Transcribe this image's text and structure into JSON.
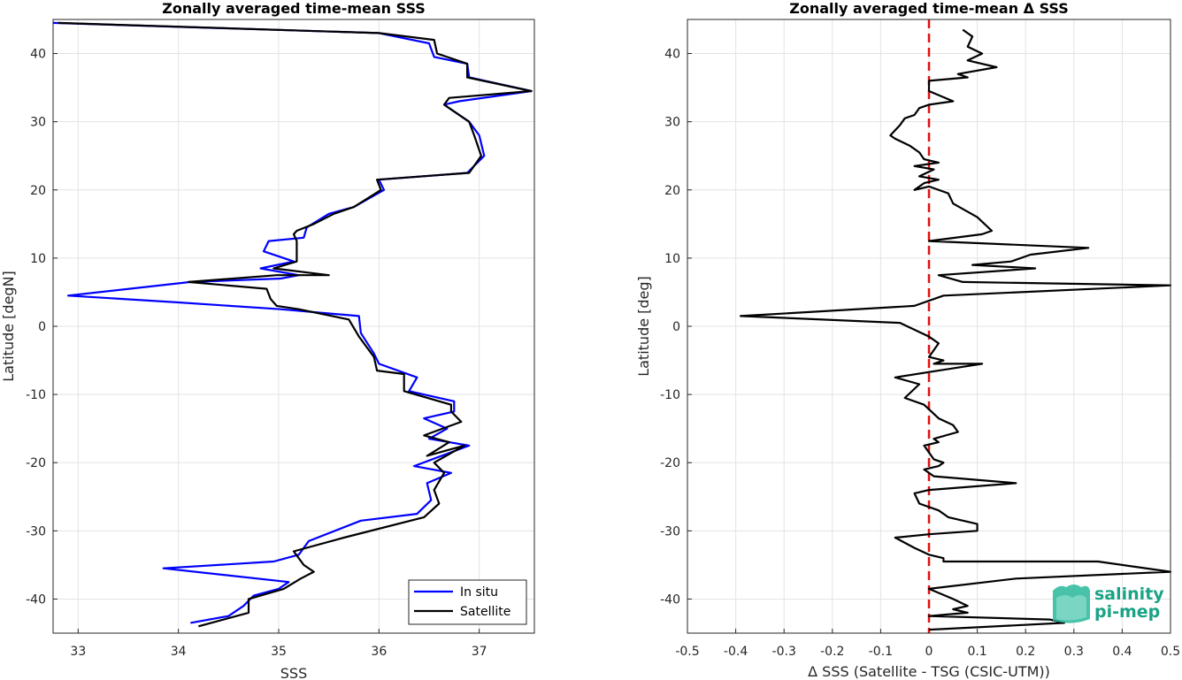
{
  "chart_data": [
    {
      "type": "line",
      "title": "Zonally averaged time-mean SSS",
      "xlabel": "SSS",
      "ylabel": "Latitude [degN]",
      "xlim": [
        32.75,
        37.55
      ],
      "ylim": [
        -45,
        45
      ],
      "xticks": [
        33,
        34,
        35,
        36,
        37
      ],
      "yticks": [
        -40,
        -30,
        -20,
        -10,
        0,
        10,
        20,
        30,
        40
      ],
      "grid": true,
      "legend_position": "bottom-right",
      "series": [
        {
          "name": "In situ",
          "color": "#0000ff",
          "x": [
            32.75,
            36.0,
            36.5,
            36.55,
            36.88,
            36.9,
            37.52,
            36.8,
            36.65,
            36.9,
            37.0,
            37.05,
            36.88,
            36.0,
            36.05,
            35.75,
            35.5,
            35.28,
            35.25,
            34.9,
            34.85,
            35.15,
            34.82,
            35.2,
            35.02,
            34.12,
            32.9,
            34.0,
            35.02,
            35.8,
            35.82,
            35.95,
            36.0,
            36.38,
            36.3,
            36.75,
            36.75,
            36.45,
            36.68,
            36.5,
            36.9,
            36.35,
            36.72,
            36.48,
            36.52,
            36.38,
            35.82,
            35.3,
            35.2,
            34.95,
            33.85,
            35.1,
            35.0,
            34.75,
            34.65,
            34.5,
            34.12
          ],
          "y": [
            44.5,
            43.0,
            41.5,
            39.5,
            38.5,
            36.5,
            34.5,
            33.0,
            32.5,
            30.0,
            28.0,
            25.0,
            22.5,
            21.5,
            20.0,
            17.5,
            16.5,
            14.5,
            13.0,
            12.5,
            11.0,
            9.5,
            8.5,
            7.5,
            7.0,
            6.5,
            4.5,
            3.5,
            2.5,
            1.5,
            -1.0,
            -4.0,
            -5.5,
            -7.5,
            -9.5,
            -11.0,
            -12.5,
            -13.5,
            -15.0,
            -16.5,
            -17.5,
            -20.5,
            -21.5,
            -23.0,
            -25.5,
            -27.5,
            -28.5,
            -31.5,
            -33.5,
            -34.5,
            -35.5,
            -37.5,
            -38.5,
            -39.5,
            -41.0,
            -42.5,
            -43.5
          ]
        },
        {
          "name": "Satellite",
          "color": "#000000",
          "x": [
            32.8,
            36.0,
            36.55,
            36.58,
            36.88,
            36.88,
            37.52,
            36.7,
            36.65,
            36.9,
            36.95,
            37.02,
            36.9,
            35.98,
            36.02,
            35.75,
            35.55,
            35.35,
            35.18,
            35.15,
            35.18,
            35.18,
            34.95,
            35.5,
            34.98,
            34.1,
            34.88,
            34.92,
            34.98,
            35.2,
            35.7,
            35.8,
            35.95,
            35.98,
            36.25,
            36.25,
            36.72,
            36.72,
            36.82,
            36.45,
            36.7,
            36.48,
            36.85,
            36.55,
            36.65,
            36.55,
            36.6,
            36.45,
            35.65,
            35.15,
            35.25,
            35.35,
            35.22,
            35.05,
            34.7,
            34.7,
            34.2
          ],
          "y": [
            44.5,
            43.0,
            42.0,
            40.0,
            38.5,
            36.5,
            34.5,
            33.5,
            32.5,
            30.0,
            28.0,
            25.0,
            22.5,
            21.5,
            20.0,
            17.5,
            16.5,
            15.0,
            14.0,
            13.5,
            12.5,
            9.5,
            8.5,
            7.5,
            7.5,
            6.5,
            5.5,
            4.0,
            3.0,
            2.5,
            1.0,
            -1.5,
            -4.5,
            -6.5,
            -7.0,
            -9.5,
            -11.5,
            -12.5,
            -14.0,
            -16.0,
            -17.0,
            -19.0,
            -17.5,
            -20.0,
            -21.5,
            -24.0,
            -26.0,
            -28.0,
            -31.0,
            -33.0,
            -35.0,
            -36.0,
            -37.0,
            -38.5,
            -40.0,
            -42.0,
            -44.0
          ]
        }
      ]
    },
    {
      "type": "line",
      "title": "Zonally averaged time-mean Δ SSS",
      "xlabel": "Δ SSS (Satellite - TSG (CSIC-UTM))",
      "ylabel": "Latitude [deg]",
      "xlim": [
        -0.5,
        0.5
      ],
      "ylim": [
        -45,
        45
      ],
      "xticks": [
        -0.5,
        -0.4,
        -0.3,
        -0.2,
        -0.1,
        0,
        0.1,
        0.2,
        0.3,
        0.4,
        0.5
      ],
      "xtick_labels": [
        "-0.5",
        "-0.4",
        "-0.3",
        "-0.2",
        "-0.1",
        "0",
        "0.1",
        "0.2",
        "0.3",
        "0.4",
        "0.5"
      ],
      "yticks": [
        -40,
        -30,
        -20,
        -10,
        0,
        10,
        20,
        30,
        40
      ],
      "grid": true,
      "reference_line": {
        "x": 0,
        "color": "#e01010",
        "style": "dashed"
      },
      "series": [
        {
          "color": "#000000",
          "x": [
            0.07,
            0.09,
            0.08,
            0.11,
            0.08,
            0.14,
            0.06,
            0.08,
            0.0,
            0.0,
            0.05,
            0.0,
            -0.02,
            -0.03,
            -0.05,
            -0.06,
            -0.08,
            -0.07,
            -0.04,
            -0.02,
            -0.01,
            0.02,
            -0.03,
            0.01,
            -0.02,
            0.02,
            -0.01,
            -0.03,
            0.0,
            0.04,
            0.05,
            0.1,
            0.13,
            0.11,
            0.0,
            0.33,
            0.21,
            0.17,
            0.09,
            0.22,
            0.02,
            0.07,
            0.5,
            0.03,
            -0.03,
            -0.39,
            -0.06,
            -0.03,
            0.0,
            0.02,
            0.0,
            0.03,
            0.01,
            0.11,
            0.02,
            -0.07,
            -0.02,
            -0.05,
            -0.01,
            0.02,
            0.05,
            0.06,
            0.01,
            0.02,
            -0.01,
            0.0,
            0.01,
            0.03,
            0.02,
            -0.01,
            0.01,
            0.18,
            0.0,
            -0.03,
            -0.02,
            0.02,
            0.04,
            0.1,
            0.1,
            0.0,
            -0.07,
            -0.03,
            0.0,
            0.03,
            0.03,
            0.35,
            0.5,
            0.18,
            0.0,
            0.05,
            0.08,
            0.05,
            0.08,
            0.0,
            0.25,
            0.28,
            0.0
          ],
          "y": [
            43.5,
            42.5,
            41.0,
            40.0,
            39.0,
            38.0,
            37.0,
            36.5,
            36.0,
            34.5,
            33.0,
            32.5,
            32.0,
            31.0,
            30.5,
            29.5,
            28.0,
            27.5,
            26.5,
            25.5,
            24.5,
            24.0,
            23.5,
            23.0,
            22.0,
            21.5,
            21.0,
            20.0,
            20.5,
            19.5,
            18.0,
            16.0,
            14.0,
            13.5,
            12.5,
            11.5,
            10.5,
            9.5,
            9.0,
            8.5,
            7.5,
            6.5,
            6.0,
            4.5,
            3.0,
            1.5,
            0.5,
            -0.5,
            -1.5,
            -2.5,
            -4.5,
            -5.0,
            -5.5,
            -5.5,
            -6.5,
            -7.5,
            -8.5,
            -10.5,
            -11.5,
            -13.5,
            -14.5,
            -15.5,
            -16.5,
            -17.0,
            -17.5,
            -18.5,
            -19.5,
            -20.0,
            -20.5,
            -21.0,
            -22.0,
            -23.0,
            -24.0,
            -24.5,
            -26.0,
            -27.0,
            -28.0,
            -29.0,
            -30.0,
            -30.5,
            -31.0,
            -32.5,
            -33.5,
            -34.0,
            -34.5,
            -34.5,
            -36.0,
            -37.0,
            -38.5,
            -40.0,
            -41.0,
            -41.5,
            -42.0,
            -42.5,
            -43.0,
            -43.5,
            -44.5
          ]
        }
      ]
    }
  ],
  "legend": {
    "items": [
      {
        "label": "In situ"
      },
      {
        "label": "Satellite"
      }
    ]
  },
  "logo": {
    "line1": "salinity",
    "line2": "pi-mep",
    "color": "#1aa386"
  }
}
